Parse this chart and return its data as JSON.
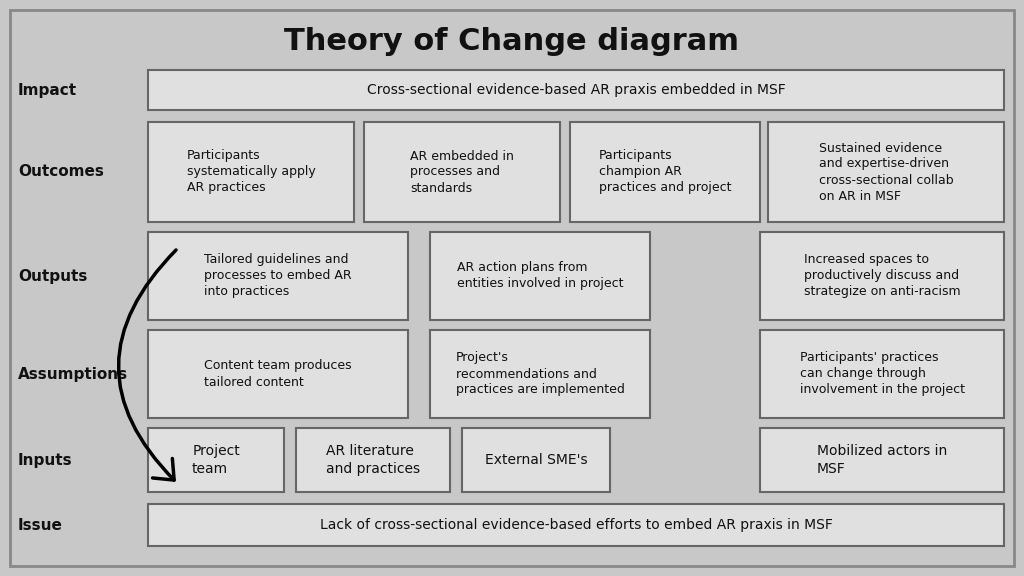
{
  "title": "Theory of Change diagram",
  "bg_color": "#c8c8c8",
  "box_bg": "#e0e0e0",
  "box_edge": "#666666",
  "outer_edge": "#999999",
  "text_color": "#111111",
  "impact_text": "Cross-sectional evidence-based AR praxis embedded in MSF",
  "issue_text": "Lack of cross-sectional evidence-based efforts to embed AR praxis in MSF",
  "outcomes_boxes": [
    "Participants\nsystematically apply\nAR practices",
    "AR embedded in\nprocesses and\nstandards",
    "Participants\nchampion AR\npractices and project",
    "Sustained evidence\nand expertise-driven\ncross-sectional collab\non AR in MSF"
  ],
  "outputs_boxes": [
    "Tailored guidelines and\nprocesses to embed AR\ninto practices",
    "AR action plans from\nentities involved in project",
    "Increased spaces to\nproductively discuss and\nstrategize on anti-racism"
  ],
  "assumptions_boxes": [
    "Content team produces\ntailored content",
    "Project's\nrecommendations and\npractices are implemented",
    "Participants' practices\ncan change through\ninvolvement in the project"
  ],
  "inputs_boxes": [
    "Project\nteam",
    "AR literature\nand practices",
    "External SME's",
    "Mobilized actors in\nMSF"
  ],
  "row_labels": [
    "Impact",
    "Outcomes",
    "Outputs",
    "Assumptions",
    "Inputs",
    "Issue"
  ]
}
